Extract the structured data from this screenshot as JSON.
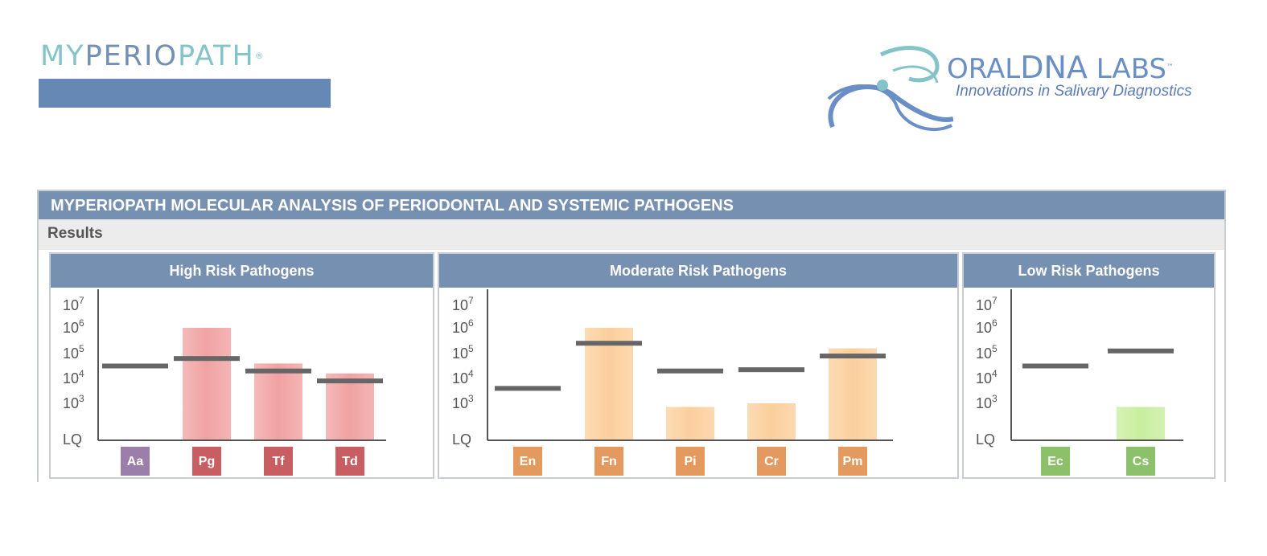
{
  "logo_left": {
    "part1": "MY",
    "part2": "PERIO",
    "part3": "PATH",
    "mark": "®"
  },
  "logo_right": {
    "brand1": "ORAL",
    "brand2": "DNA",
    "brand3": " LABS",
    "tm": "™",
    "tagline": "Innovations in Salivary Diagnostics"
  },
  "report": {
    "title": "MYPERIOPATH MOLECULAR ANALYSIS OF PERIODONTAL AND SYSTEMIC PATHOGENS",
    "section": "Results"
  },
  "chart_data": [
    {
      "type": "bar",
      "title": "High Risk Pathogens",
      "y_scale": "log",
      "yticks": [
        {
          "label": "LQ",
          "value": 0
        },
        {
          "label": "10",
          "exp": "3",
          "value": 3
        },
        {
          "label": "10",
          "exp": "4",
          "value": 4
        },
        {
          "label": "10",
          "exp": "5",
          "value": 5
        },
        {
          "label": "10",
          "exp": "6",
          "value": 6
        },
        {
          "label": "10",
          "exp": "7",
          "value": 7
        }
      ],
      "categories": [
        "Aa",
        "Pg",
        "Tf",
        "Td"
      ],
      "values": [
        null,
        6.0,
        4.6,
        4.2
      ],
      "thresholds": [
        4.5,
        4.8,
        4.3,
        3.9
      ],
      "bar_color": "#f1a2a2",
      "badge_colors": [
        "#9b7eaa",
        "#c95e62",
        "#c95e62",
        "#c95e62"
      ]
    },
    {
      "type": "bar",
      "title": "Moderate Risk Pathogens",
      "y_scale": "log",
      "yticks": [
        {
          "label": "LQ",
          "value": 0
        },
        {
          "label": "10",
          "exp": "3",
          "value": 3
        },
        {
          "label": "10",
          "exp": "4",
          "value": 4
        },
        {
          "label": "10",
          "exp": "5",
          "value": 5
        },
        {
          "label": "10",
          "exp": "6",
          "value": 6
        },
        {
          "label": "10",
          "exp": "7",
          "value": 7
        }
      ],
      "categories": [
        "En",
        "Fn",
        "Pi",
        "Cr",
        "Pm"
      ],
      "values": [
        null,
        6.0,
        2.7,
        3.0,
        5.2
      ],
      "thresholds": [
        3.6,
        5.4,
        4.3,
        4.35,
        4.9
      ],
      "bar_color": "#fbcf9c",
      "badge_colors": [
        "#e49a5f",
        "#e49a5f",
        "#e49a5f",
        "#e49a5f",
        "#e49a5f"
      ]
    },
    {
      "type": "bar",
      "title": "Low Risk Pathogens",
      "y_scale": "log",
      "yticks": [
        {
          "label": "LQ",
          "value": 0
        },
        {
          "label": "10",
          "exp": "3",
          "value": 3
        },
        {
          "label": "10",
          "exp": "4",
          "value": 4
        },
        {
          "label": "10",
          "exp": "5",
          "value": 5
        },
        {
          "label": "10",
          "exp": "6",
          "value": 6
        },
        {
          "label": "10",
          "exp": "7",
          "value": 7
        }
      ],
      "categories": [
        "Ec",
        "Cs"
      ],
      "values": [
        null,
        2.7
      ],
      "thresholds": [
        4.5,
        5.1
      ],
      "bar_color": "#c8ee9e",
      "badge_colors": [
        "#8cc06a",
        "#8cc06a"
      ]
    }
  ],
  "colors": {
    "header": "#7690b2",
    "threshold": "#666666",
    "axis": "#555555"
  }
}
